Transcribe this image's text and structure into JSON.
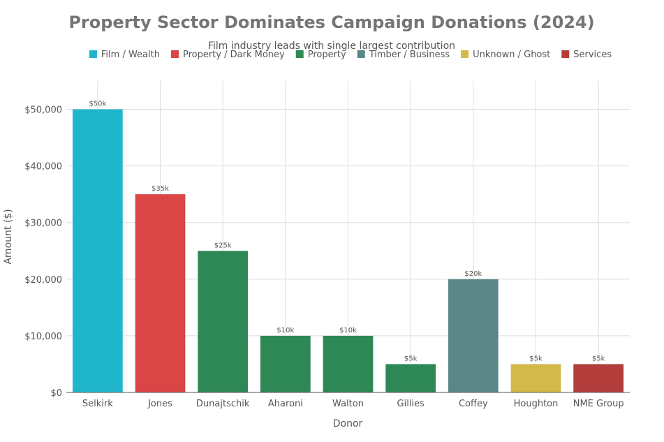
{
  "chart_data": {
    "type": "bar",
    "title": "Property Sector Dominates Campaign Donations (2024)",
    "subtitle": "Film industry leads with single largest contribution",
    "xlabel": "Donor",
    "ylabel": "Amount ($)",
    "ylim": [
      0,
      55000
    ],
    "yticks": [
      0,
      10000,
      20000,
      30000,
      40000,
      50000
    ],
    "ytick_labels": [
      "$0",
      "$10,000",
      "$20,000",
      "$30,000",
      "$40,000",
      "$50,000"
    ],
    "grid": true,
    "legend_position": "top-center",
    "legend": [
      {
        "name": "Film / Wealth",
        "color": "#1fb6cc"
      },
      {
        "name": "Property / Dark Money",
        "color": "#da4545"
      },
      {
        "name": "Property",
        "color": "#2e8856"
      },
      {
        "name": "Timber / Business",
        "color": "#5b8789"
      },
      {
        "name": "Unknown / Ghost",
        "color": "#d3b84a"
      },
      {
        "name": "Services",
        "color": "#b33d3a"
      }
    ],
    "categories": [
      "Selkirk",
      "Jones",
      "Dunajtschik",
      "Aharoni",
      "Walton",
      "Gillies",
      "Coffey",
      "Houghton",
      "NME Group"
    ],
    "values": [
      50000,
      35000,
      25000,
      10000,
      10000,
      5000,
      20000,
      5000,
      5000
    ],
    "bar_groups": [
      "Film / Wealth",
      "Property / Dark Money",
      "Property",
      "Property",
      "Property",
      "Property",
      "Timber / Business",
      "Unknown / Ghost",
      "Services"
    ],
    "data_labels": [
      "$50k",
      "$35k",
      "$25k",
      "$10k",
      "$10k",
      "$5k",
      "$20k",
      "$5k",
      "$5k"
    ]
  }
}
